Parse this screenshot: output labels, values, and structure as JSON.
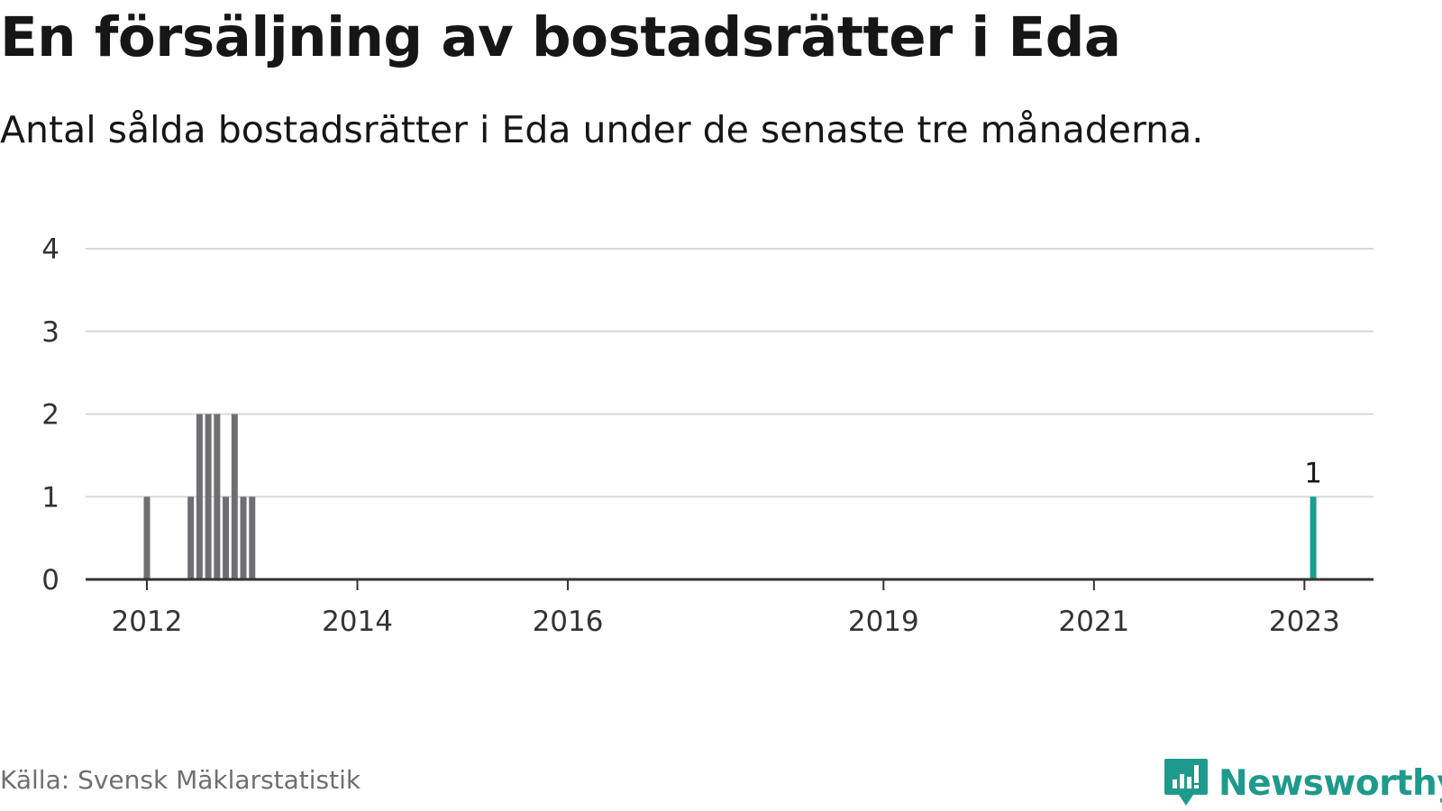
{
  "header": {
    "title": "En försäljning av bostadsrätter i Eda",
    "subtitle": "Antal sålda bostadsrätter i Eda under de senaste tre månaderna."
  },
  "footer": {
    "source": "Källa: Svensk Mäklarstatistik",
    "brand": "Newsworthy",
    "brand_color": "#1e9a8c",
    "brand_icon": "newsworthy-logo-icon"
  },
  "chart_data": {
    "type": "bar",
    "ylim": [
      0,
      4
    ],
    "y_ticks": [
      "0",
      "1",
      "2",
      "3",
      "4"
    ],
    "grid": true,
    "x_tick_labels": [
      "2012",
      "2014",
      "2016",
      "2019",
      "2021",
      "2023"
    ],
    "bar_color": "#6f6f73",
    "highlight_color": "#1b9e8f",
    "highlight_label": "1",
    "categories": [
      "2012-01",
      "2012-02",
      "2012-03",
      "2012-04",
      "2012-05",
      "2012-06",
      "2012-07",
      "2012-08",
      "2012-09",
      "2012-10",
      "2012-11",
      "2012-12",
      "2013-01",
      "2013-02",
      "2013-03",
      "2013-04",
      "2013-05",
      "2013-06",
      "2013-07",
      "2013-08",
      "2013-09",
      "2013-10",
      "2013-11",
      "2013-12",
      "2014-01",
      "2014-02",
      "2014-03",
      "2014-04",
      "2014-05",
      "2014-06",
      "2014-07",
      "2014-08",
      "2014-09",
      "2014-10",
      "2014-11",
      "2014-12",
      "2015-01",
      "2015-02",
      "2015-03",
      "2015-04",
      "2015-05",
      "2015-06",
      "2015-07",
      "2015-08",
      "2015-09",
      "2015-10",
      "2015-11",
      "2015-12",
      "2016-01",
      "2016-02",
      "2016-03",
      "2016-04",
      "2016-05",
      "2016-06",
      "2016-07",
      "2016-08",
      "2016-09",
      "2016-10",
      "2016-11",
      "2016-12",
      "2017-01",
      "2017-02",
      "2017-03",
      "2017-04",
      "2017-05",
      "2017-06",
      "2017-07",
      "2017-08",
      "2017-09",
      "2017-10",
      "2017-11",
      "2017-12",
      "2018-01",
      "2018-02",
      "2018-03",
      "2018-04",
      "2018-05",
      "2018-06",
      "2018-07",
      "2018-08",
      "2018-09",
      "2018-10",
      "2018-11",
      "2018-12",
      "2019-01",
      "2019-02",
      "2019-03",
      "2019-04",
      "2019-05",
      "2019-06",
      "2019-07",
      "2019-08",
      "2019-09",
      "2019-10",
      "2019-11",
      "2019-12",
      "2020-01",
      "2020-02",
      "2020-03",
      "2020-04",
      "2020-05",
      "2020-06",
      "2020-07",
      "2020-08",
      "2020-09",
      "2020-10",
      "2020-11",
      "2020-12",
      "2021-01",
      "2021-02",
      "2021-03",
      "2021-04",
      "2021-05",
      "2021-06",
      "2021-07",
      "2021-08",
      "2021-09",
      "2021-10",
      "2021-11",
      "2021-12",
      "2022-01",
      "2022-02",
      "2022-03",
      "2022-04",
      "2022-05",
      "2022-06",
      "2022-07",
      "2022-08",
      "2022-09",
      "2022-10",
      "2022-11",
      "2022-12",
      "2023-01",
      "2023-02"
    ],
    "values": [
      1,
      0,
      0,
      0,
      0,
      1,
      2,
      2,
      2,
      1,
      2,
      1,
      1,
      0,
      0,
      0,
      0,
      0,
      0,
      0,
      0,
      0,
      0,
      0,
      0,
      0,
      0,
      0,
      0,
      0,
      0,
      0,
      0,
      0,
      0,
      0,
      0,
      0,
      0,
      0,
      0,
      0,
      0,
      0,
      0,
      0,
      0,
      0,
      0,
      0,
      0,
      0,
      0,
      0,
      0,
      0,
      0,
      0,
      0,
      0,
      0,
      0,
      0,
      0,
      0,
      0,
      0,
      0,
      0,
      0,
      0,
      0,
      0,
      0,
      0,
      0,
      0,
      0,
      0,
      0,
      0,
      0,
      0,
      0,
      0,
      0,
      0,
      0,
      0,
      0,
      0,
      0,
      0,
      0,
      0,
      0,
      0,
      0,
      0,
      0,
      0,
      0,
      0,
      0,
      0,
      0,
      0,
      0,
      0,
      0,
      0,
      0,
      0,
      0,
      0,
      0,
      0,
      0,
      0,
      0,
      0,
      0,
      0,
      0,
      0,
      0,
      0,
      0,
      0,
      0,
      0,
      0,
      0,
      1
    ],
    "highlight_index": 133
  }
}
